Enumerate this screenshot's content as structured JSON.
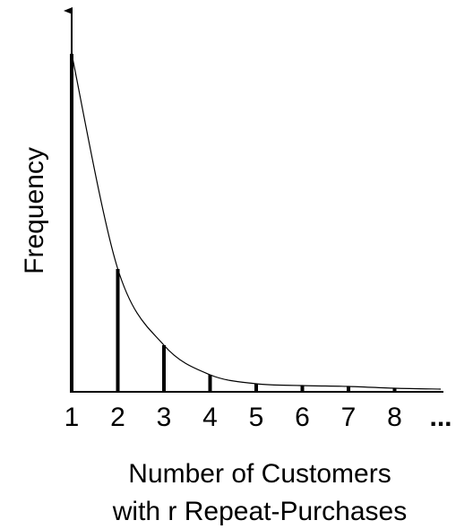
{
  "chart_data": {
    "type": "stem",
    "categories": [
      "1",
      "2",
      "3",
      "4",
      "5",
      "6",
      "7",
      "8",
      "..."
    ],
    "values": [
      377,
      137,
      52,
      19,
      9,
      7,
      6,
      4,
      3
    ],
    "ylim": [
      0,
      425
    ],
    "xlabel": [
      "Number of Customers",
      "with r Repeat-Purchases"
    ],
    "ylabel": "Frequency",
    "color": "#000000"
  }
}
